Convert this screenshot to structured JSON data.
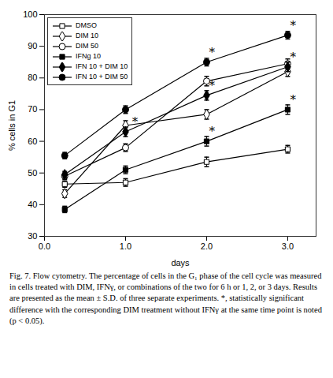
{
  "chart_data": {
    "type": "line",
    "xlabel": "days",
    "ylabel": "% cells in G1",
    "x": [
      0.25,
      1,
      2,
      3
    ],
    "series": [
      {
        "name": "DMSO",
        "color": "black",
        "marker": "square-open",
        "values": [
          46.5,
          47.0,
          53.5,
          57.5
        ],
        "errors": [
          1.0,
          1.2,
          1.5,
          1.2
        ]
      },
      {
        "name": "DIM 10",
        "color": "black",
        "marker": "diamond-open",
        "values": [
          43.5,
          65.0,
          68.5,
          82.0
        ],
        "errors": [
          1.2,
          1.5,
          1.5,
          1.5
        ]
      },
      {
        "name": "DIM 50",
        "color": "black",
        "marker": "circle-open",
        "values": [
          49.0,
          58.0,
          79.0,
          84.5
        ],
        "errors": [
          1.0,
          1.2,
          1.5,
          1.5
        ]
      },
      {
        "name": "IFNg 10",
        "color": "black",
        "marker": "square",
        "values": [
          38.5,
          51.0,
          60.0,
          70.0
        ],
        "errors": [
          1.0,
          1.2,
          1.5,
          1.5
        ]
      },
      {
        "name": "IFN 10 + DIM 10",
        "color": "black",
        "marker": "diamond",
        "values": [
          49.5,
          63.0,
          74.5,
          83.5
        ],
        "errors": [
          1.0,
          1.5,
          1.5,
          1.5
        ]
      },
      {
        "name": "IFN 10 + DIM 50",
        "color": "black",
        "marker": "circle",
        "values": [
          55.5,
          70.0,
          85.0,
          93.5
        ],
        "errors": [
          1.0,
          1.2,
          1.2,
          1.2
        ]
      }
    ],
    "annotations": [
      {
        "x": 1.08,
        "y": 65.0,
        "text": "*"
      },
      {
        "x": 2.03,
        "y": 87.0,
        "text": "*"
      },
      {
        "x": 2.03,
        "y": 76.5,
        "text": "*"
      },
      {
        "x": 2.03,
        "y": 62.0,
        "text": "*"
      },
      {
        "x": 3.03,
        "y": 95.5,
        "text": "*"
      },
      {
        "x": 3.03,
        "y": 85.5,
        "text": "*"
      },
      {
        "x": 3.03,
        "y": 72.0,
        "text": "*"
      }
    ],
    "xlim": [
      0.0,
      3.35
    ],
    "ylim": [
      30,
      100
    ],
    "xticks": [
      0,
      1,
      2,
      3
    ],
    "yticks": [
      30,
      40,
      50,
      60,
      70,
      80,
      90,
      100
    ],
    "legend": "upper left",
    "caption": "Fig. 7. Flow cytometry. The percentage of cells in the G₁ phase of the cell cycle was measured in cells treated with DIM, IFNγ, or combinations of the two for 6 h or 1, 2, or 3 days. Results are presented as the mean ± S.D. of three separate experiments. *, statistically significant difference with the corresponding DIM treatment without IFNγ at the same time point is noted (p < 0.05)."
  }
}
